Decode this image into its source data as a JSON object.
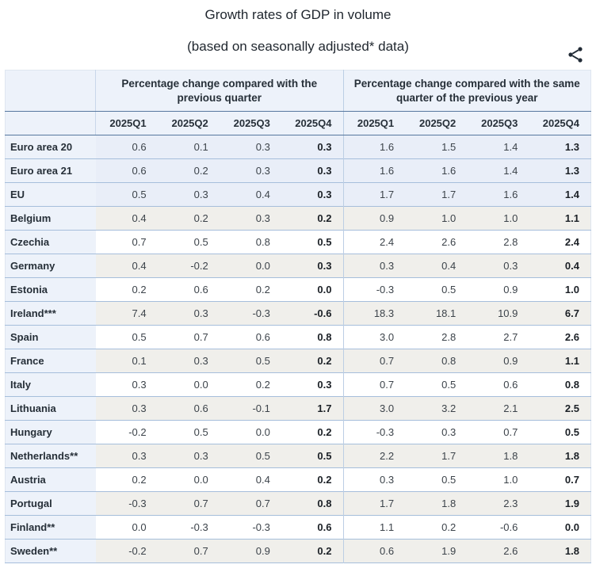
{
  "chart_data": {
    "type": "table",
    "title": "Growth rates of GDP in volume",
    "subtitle": "(based on seasonally adjusted* data)",
    "column_groups": [
      {
        "label": "Percentage change compared with the previous quarter"
      },
      {
        "label": "Percentage change compared with the same quarter of the previous year"
      }
    ],
    "columns": [
      "2025Q1",
      "2025Q2",
      "2025Q3",
      "2025Q4"
    ],
    "rows": [
      {
        "label": "Euro area 20",
        "highlight": "blue",
        "qoq": [
          "0.6",
          "0.1",
          "0.3",
          "0.3"
        ],
        "yoy": [
          "1.6",
          "1.5",
          "1.4",
          "1.3"
        ]
      },
      {
        "label": "Euro area 21",
        "highlight": "blue",
        "qoq": [
          "0.6",
          "0.2",
          "0.3",
          "0.3"
        ],
        "yoy": [
          "1.6",
          "1.6",
          "1.4",
          "1.3"
        ]
      },
      {
        "label": "EU",
        "highlight": "blue",
        "qoq": [
          "0.5",
          "0.3",
          "0.4",
          "0.3"
        ],
        "yoy": [
          "1.7",
          "1.7",
          "1.6",
          "1.4"
        ]
      },
      {
        "label": "Belgium",
        "highlight": "gray",
        "qoq": [
          "0.4",
          "0.2",
          "0.3",
          "0.2"
        ],
        "yoy": [
          "0.9",
          "1.0",
          "1.0",
          "1.1"
        ]
      },
      {
        "label": "Czechia",
        "highlight": "white",
        "qoq": [
          "0.7",
          "0.5",
          "0.8",
          "0.5"
        ],
        "yoy": [
          "2.4",
          "2.6",
          "2.8",
          "2.4"
        ]
      },
      {
        "label": "Germany",
        "highlight": "gray",
        "qoq": [
          "0.4",
          "-0.2",
          "0.0",
          "0.3"
        ],
        "yoy": [
          "0.3",
          "0.4",
          "0.3",
          "0.4"
        ]
      },
      {
        "label": "Estonia",
        "highlight": "white",
        "qoq": [
          "0.2",
          "0.6",
          "0.2",
          "0.0"
        ],
        "yoy": [
          "-0.3",
          "0.5",
          "0.9",
          "1.0"
        ]
      },
      {
        "label": "Ireland***",
        "highlight": "gray",
        "qoq": [
          "7.4",
          "0.3",
          "-0.3",
          "-0.6"
        ],
        "yoy": [
          "18.3",
          "18.1",
          "10.9",
          "6.7"
        ]
      },
      {
        "label": "Spain",
        "highlight": "white",
        "qoq": [
          "0.5",
          "0.7",
          "0.6",
          "0.8"
        ],
        "yoy": [
          "3.0",
          "2.8",
          "2.7",
          "2.6"
        ]
      },
      {
        "label": "France",
        "highlight": "gray",
        "qoq": [
          "0.1",
          "0.3",
          "0.5",
          "0.2"
        ],
        "yoy": [
          "0.7",
          "0.8",
          "0.9",
          "1.1"
        ]
      },
      {
        "label": "Italy",
        "highlight": "white",
        "qoq": [
          "0.3",
          "0.0",
          "0.2",
          "0.3"
        ],
        "yoy": [
          "0.7",
          "0.5",
          "0.6",
          "0.8"
        ]
      },
      {
        "label": "Lithuania",
        "highlight": "gray",
        "qoq": [
          "0.3",
          "0.6",
          "-0.1",
          "1.7"
        ],
        "yoy": [
          "3.0",
          "3.2",
          "2.1",
          "2.5"
        ]
      },
      {
        "label": "Hungary",
        "highlight": "white",
        "qoq": [
          "-0.2",
          "0.5",
          "0.0",
          "0.2"
        ],
        "yoy": [
          "-0.3",
          "0.3",
          "0.7",
          "0.5"
        ]
      },
      {
        "label": "Netherlands**",
        "highlight": "gray",
        "qoq": [
          "0.3",
          "0.3",
          "0.5",
          "0.5"
        ],
        "yoy": [
          "2.2",
          "1.7",
          "1.8",
          "1.8"
        ]
      },
      {
        "label": "Austria",
        "highlight": "white",
        "qoq": [
          "0.2",
          "0.0",
          "0.4",
          "0.2"
        ],
        "yoy": [
          "0.3",
          "0.5",
          "1.0",
          "0.7"
        ]
      },
      {
        "label": "Portugal",
        "highlight": "gray",
        "qoq": [
          "-0.3",
          "0.7",
          "0.7",
          "0.8"
        ],
        "yoy": [
          "1.7",
          "1.8",
          "2.3",
          "1.9"
        ]
      },
      {
        "label": "Finland**",
        "highlight": "white",
        "qoq": [
          "0.0",
          "-0.3",
          "-0.3",
          "0.6"
        ],
        "yoy": [
          "1.1",
          "0.2",
          "-0.6",
          "0.0"
        ]
      },
      {
        "label": "Sweden**",
        "highlight": "gray",
        "qoq": [
          "-0.2",
          "0.7",
          "0.9",
          "0.2"
        ],
        "yoy": [
          "0.6",
          "1.9",
          "2.6",
          "1.8"
        ]
      }
    ]
  },
  "toolbar": {
    "share_icon": "share-icon"
  },
  "colors": {
    "header_bg": "#edf2fa",
    "blue_row_bg": "#e9eef8",
    "gray_row_bg": "#f0efeb",
    "white_row_bg": "#ffffff",
    "header_rule": "#56779f",
    "row_rule": "#a6bedb",
    "group_divider": "#bccee4",
    "title_text": "#1f262e",
    "icon_color": "#212b36"
  }
}
